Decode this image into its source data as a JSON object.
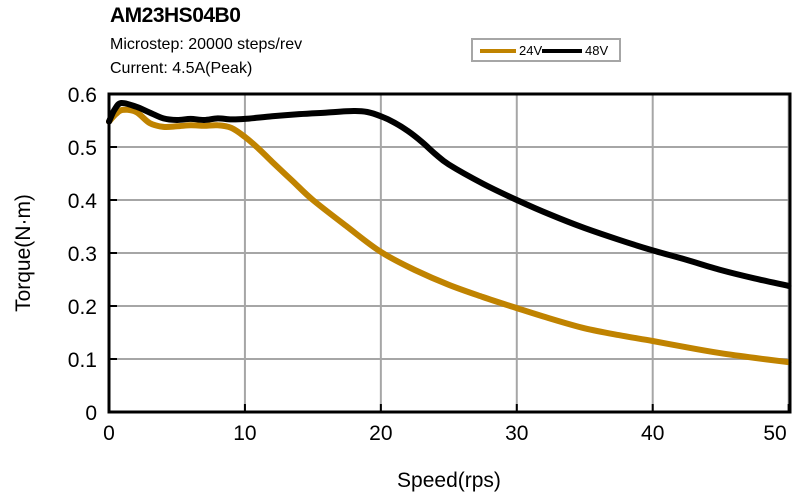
{
  "chart_data": {
    "type": "line",
    "title": "AM23HS04B0",
    "subtitle_lines": [
      "Microstep: 20000 steps/rev",
      "Current: 4.5A(Peak)"
    ],
    "xlabel": "Speed(rps)",
    "ylabel": "Torque(N·m)",
    "xlim": [
      0,
      50.1
    ],
    "ylim": [
      0,
      0.6
    ],
    "xticks": [
      0,
      10,
      20,
      30,
      40,
      50
    ],
    "xtick_labels": [
      "0",
      "10",
      "20",
      "30",
      "40",
      "50"
    ],
    "yticks": [
      0,
      0.1,
      0.2,
      0.3,
      0.4,
      0.5,
      0.6
    ],
    "ytick_labels": [
      "0",
      "0.1",
      "0.2",
      "0.3",
      "0.4",
      "0.5",
      "0.6"
    ],
    "grid": true,
    "legend_position": "top-right",
    "series": [
      {
        "name": "24V",
        "color": "#c08300",
        "x": [
          0,
          0.5,
          1,
          2,
          3,
          4,
          5,
          6,
          7,
          8,
          9,
          10,
          11,
          12,
          13.5,
          15,
          17.5,
          20,
          22.5,
          25,
          27.5,
          30,
          32.5,
          35,
          37.5,
          40,
          42.5,
          45,
          47.5,
          50
        ],
        "y": [
          0.548,
          0.562,
          0.57,
          0.566,
          0.545,
          0.538,
          0.539,
          0.541,
          0.54,
          0.541,
          0.536,
          0.519,
          0.497,
          0.472,
          0.436,
          0.4,
          0.35,
          0.302,
          0.268,
          0.24,
          0.217,
          0.196,
          0.176,
          0.158,
          0.145,
          0.134,
          0.122,
          0.111,
          0.102,
          0.094
        ]
      },
      {
        "name": "48V",
        "color": "#000000",
        "x": [
          0,
          0.4,
          0.9,
          2,
          3,
          4,
          5,
          6,
          7,
          8,
          9,
          10,
          12,
          14,
          16,
          18,
          19,
          20,
          21,
          22,
          23,
          24,
          25,
          27.5,
          30,
          32.5,
          35,
          37.5,
          40,
          42.5,
          45,
          47.5,
          50
        ],
        "y": [
          0.548,
          0.57,
          0.583,
          0.576,
          0.565,
          0.554,
          0.551,
          0.553,
          0.551,
          0.554,
          0.552,
          0.553,
          0.558,
          0.562,
          0.565,
          0.568,
          0.566,
          0.558,
          0.546,
          0.53,
          0.51,
          0.487,
          0.467,
          0.431,
          0.4,
          0.372,
          0.347,
          0.325,
          0.305,
          0.287,
          0.268,
          0.252,
          0.238
        ]
      }
    ]
  }
}
